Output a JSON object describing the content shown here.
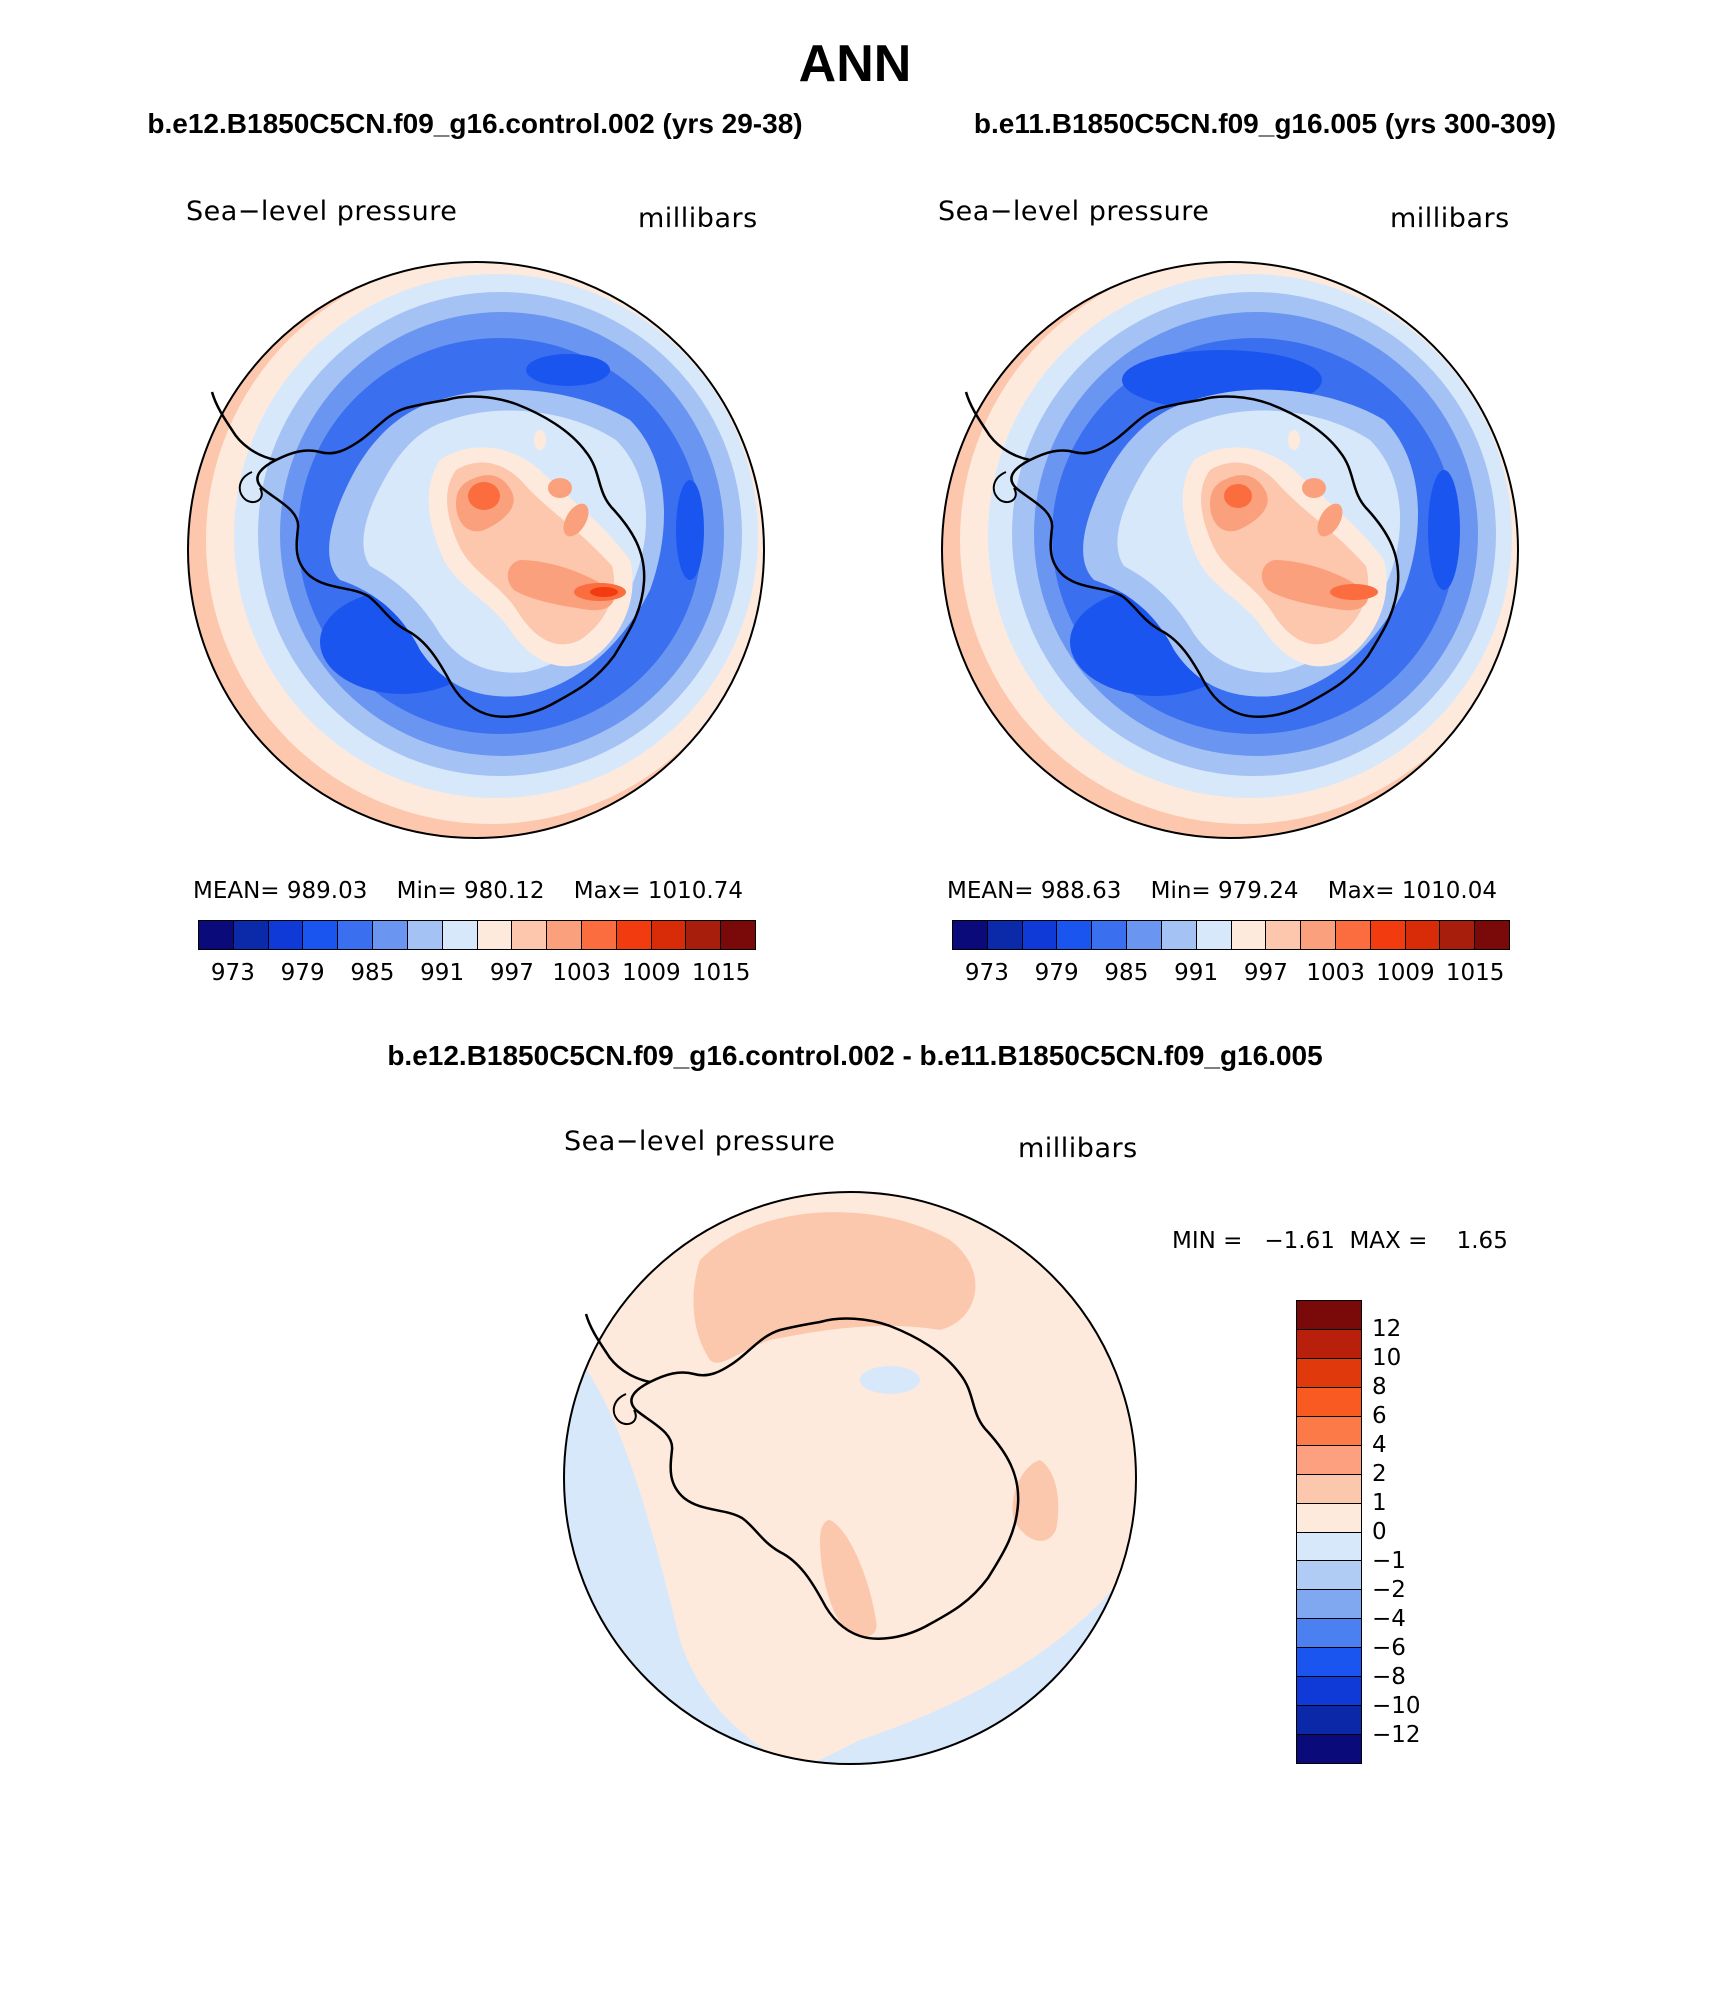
{
  "title": "ANN",
  "panels": {
    "left": {
      "case_title": "b.e12.B1850C5CN.f09_g16.control.002 (yrs 29-38)",
      "variable": "Sea−level pressure",
      "units": "millibars",
      "mean_label": "MEAN=",
      "mean": "989.03",
      "min_label": "Min=",
      "min": "980.12",
      "max_label": "Max=",
      "max": "1010.74"
    },
    "right": {
      "case_title": "b.e11.B1850C5CN.f09_g16.005 (yrs 300-309)",
      "variable": "Sea−level pressure",
      "units": "millibars",
      "mean_label": "MEAN=",
      "mean": "988.63",
      "min_label": "Min=",
      "min": "979.24",
      "max_label": "Max=",
      "max": "1010.04"
    },
    "diff": {
      "case_title": "b.e12.B1850C5CN.f09_g16.control.002 - b.e11.B1850C5CN.f09_g16.005",
      "variable": "Sea−level pressure",
      "units": "millibars",
      "minmax": "MIN =   −1.61  MAX =    1.65"
    }
  },
  "colorbar_main": {
    "colors": [
      "#0a0a7a",
      "#0a2aaa",
      "#0f3ad8",
      "#1a55f0",
      "#3a70f0",
      "#6a95f0",
      "#a5c2f5",
      "#d8e8fb",
      "#feeadc",
      "#fcc7ad",
      "#fba07c",
      "#fb6c3e",
      "#f23c10",
      "#d82c08",
      "#a81e0c",
      "#7a0a0a"
    ],
    "ticks": [
      "973",
      "979",
      "985",
      "991",
      "997",
      "1003",
      "1009",
      "1015"
    ]
  },
  "colorbar_diff": {
    "colors": [
      "#7a0a0a",
      "#b8200c",
      "#e03a0c",
      "#f85a22",
      "#fb7a48",
      "#fca080",
      "#fcc8ad",
      "#feeadc",
      "#d8e8fb",
      "#b0ccf5",
      "#80a8f0",
      "#4a80f0",
      "#1a55f0",
      "#0f3ad8",
      "#0a28a8",
      "#0a0a7a"
    ],
    "ticks": [
      "12",
      "10",
      "8",
      "6",
      "4",
      "2",
      "1",
      "0",
      "−1",
      "−2",
      "−4",
      "−6",
      "−8",
      "−10",
      "−12"
    ]
  }
}
